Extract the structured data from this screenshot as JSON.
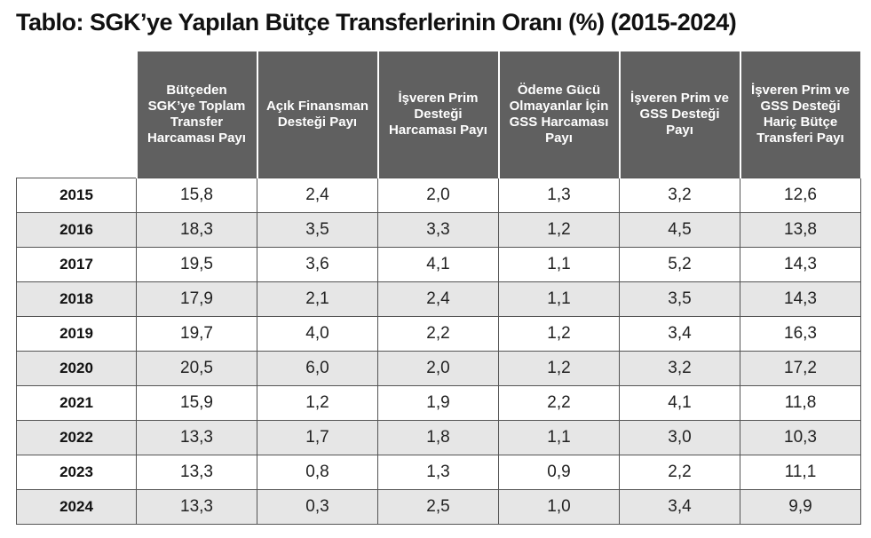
{
  "title": "Tablo: SGK’ye Yapılan Bütçe Transferlerinin Oranı (%) (2015-2024)",
  "columns": [
    "Bütçeden SGK’ye Toplam Transfer Harcaması Payı",
    "Açık Finansman Desteği Payı",
    "İşveren Prim Desteği Harcaması Payı",
    "Ödeme Gücü Olmayanlar İçin GSS Harcaması Payı",
    "İşveren Prim ve GSS Desteği Payı",
    "İşveren Prim ve GSS Desteği Hariç Bütçe Transferi Payı"
  ],
  "rows": [
    {
      "year": "2015",
      "values": [
        "15,8",
        "2,4",
        "2,0",
        "1,3",
        "3,2",
        "12,6"
      ]
    },
    {
      "year": "2016",
      "values": [
        "18,3",
        "3,5",
        "3,3",
        "1,2",
        "4,5",
        "13,8"
      ]
    },
    {
      "year": "2017",
      "values": [
        "19,5",
        "3,6",
        "4,1",
        "1,1",
        "5,2",
        "14,3"
      ]
    },
    {
      "year": "2018",
      "values": [
        "17,9",
        "2,1",
        "2,4",
        "1,1",
        "3,5",
        "14,3"
      ]
    },
    {
      "year": "2019",
      "values": [
        "19,7",
        "4,0",
        "2,2",
        "1,2",
        "3,4",
        "16,3"
      ]
    },
    {
      "year": "2020",
      "values": [
        "20,5",
        "6,0",
        "2,0",
        "1,2",
        "3,2",
        "17,2"
      ]
    },
    {
      "year": "2021",
      "values": [
        "15,9",
        "1,2",
        "1,9",
        "2,2",
        "4,1",
        "11,8"
      ]
    },
    {
      "year": "2022",
      "values": [
        "13,3",
        "1,7",
        "1,8",
        "1,1",
        "3,0",
        "10,3"
      ]
    },
    {
      "year": "2023",
      "values": [
        "13,3",
        "0,8",
        "1,3",
        "0,9",
        "2,2",
        "11,1"
      ]
    },
    {
      "year": "2024",
      "values": [
        "13,3",
        "0,3",
        "2,5",
        "1,0",
        "3,4",
        "9,9"
      ]
    }
  ],
  "colors": {
    "header_bg": "#606060",
    "header_text": "#ffffff",
    "shade_row": "#e6e6e6"
  }
}
